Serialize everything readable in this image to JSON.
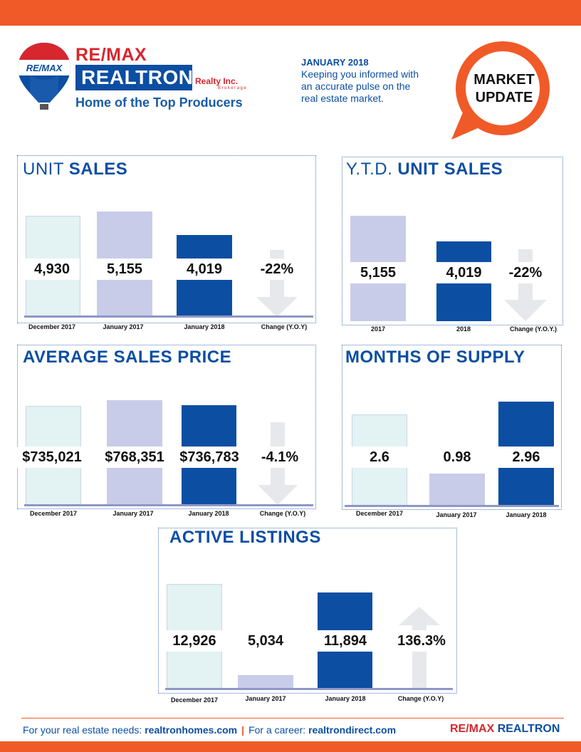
{
  "brand": {
    "balloon_text": "RE/MAX",
    "remax": "RE/MAX",
    "realtron": "REALTRON",
    "realty": "Realty Inc.",
    "brokerage": "Brokerage",
    "tagline": "Home of the Top Producers"
  },
  "header": {
    "month": "JANUARY 2018",
    "text": "Keeping you informed with an accurate pulse on the real estate market.",
    "badge_line1": "MARKET",
    "badge_line2": "UPDATE"
  },
  "colors": {
    "orange": "#f05a28",
    "blue": "#0b4ea2",
    "red": "#d7262e",
    "light_teal": "#e3f2f2",
    "lavender": "#c9cce8",
    "arrow_gray": "#e6e8ec"
  },
  "unit_sales": {
    "title_light": "UNIT ",
    "title_bold": "SALES",
    "labels": [
      "December 2017",
      "January 2017",
      "January 2018",
      "Change (Y.O.Y)"
    ],
    "values": [
      "4,930",
      "5,155",
      "4,019",
      "-22%"
    ]
  },
  "ytd_unit_sales": {
    "title_light": "Y.T.D. ",
    "title_bold": "UNIT SALES",
    "labels": [
      "2017",
      "2018",
      "Change (Y.O.Y.)"
    ],
    "values": [
      "5,155",
      "4,019",
      "-22%"
    ]
  },
  "average_sales_price": {
    "title": "AVERAGE SALES PRICE",
    "labels": [
      "December 2017",
      "January 2017",
      "January 2018",
      "Change (Y.O.Y)"
    ],
    "values": [
      "$735,021",
      "$768,351",
      "$736,783",
      "-4.1%"
    ]
  },
  "months_of_supply": {
    "title": "MONTHS OF SUPPLY",
    "labels": [
      "December 2017",
      "January 2017",
      "January 2018"
    ],
    "values": [
      "2.6",
      "0.98",
      "2.96"
    ]
  },
  "active_listings": {
    "title": "ACTIVE LISTINGS",
    "labels": [
      "December 2017",
      "January 2017",
      "January 2018",
      "Change (Y.O.Y)"
    ],
    "values": [
      "12,926",
      "5,034",
      "11,894",
      "136.3%"
    ]
  },
  "footer": {
    "prefix1": "For your real estate needs: ",
    "site1": "realtronhomes.com",
    "separator": "|",
    "prefix2": "For a career: ",
    "site2": "realtrondirect.com",
    "logo_remax": "RE/MAX",
    "logo_realtron": "REALTRON"
  }
}
